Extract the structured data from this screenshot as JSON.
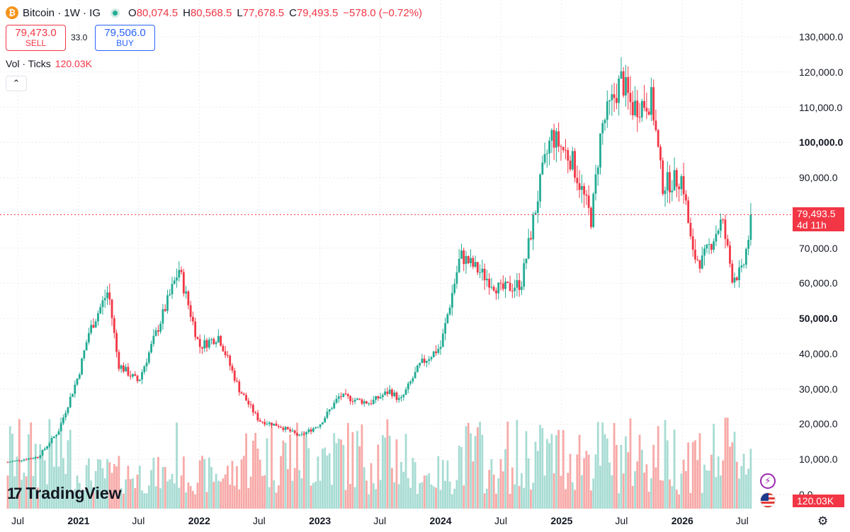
{
  "header": {
    "coin_icon": "bitcoin-icon",
    "coin_glyph": "₿",
    "symbol": "Bitcoin · 1W · IG",
    "open_key": "O",
    "open": "80,074.5",
    "high_key": "H",
    "high": "80,568.5",
    "low_key": "L",
    "low": "77,678.5",
    "close_key": "C",
    "close": "79,493.5",
    "change": "−578.0 (−0.72%)"
  },
  "trade": {
    "sell_price": "79,473.0",
    "sell_label": "SELL",
    "spread": "33.0",
    "buy_price": "79,506.0",
    "buy_label": "BUY"
  },
  "volume": {
    "label": "Vol · Ticks",
    "value": "120.03K"
  },
  "collapse_glyph": "⌃",
  "price_tag": {
    "price": "79,493.5",
    "countdown": "4d 11h"
  },
  "volume_tag": "120.03K",
  "logo": {
    "mark": "17",
    "text": "TradingView"
  },
  "icons": {
    "bolt": "⚡",
    "gear": "⚙"
  },
  "colors": {
    "up": "#22ab94",
    "down": "#f23645",
    "up_volume": "#a7dcd3",
    "down_volume": "#f7a9a7",
    "accent": "#2962ff"
  },
  "chart_data": {
    "type": "candlestick",
    "interval": "1W",
    "ylim": [
      0,
      135000
    ],
    "y_ticks": [
      "130,000.0",
      "120,000.0",
      "110,000.0",
      "100,000.0",
      "90,000.0",
      "80,000.0",
      "70,000.0",
      "60,000.0",
      "50,000.0",
      "40,000.0",
      "30,000.0",
      "20,000.0",
      "10,000.0",
      "0.0"
    ],
    "y_ticks_bold": [
      "100,000.0",
      "50,000.0"
    ],
    "y_tick_values": [
      130000,
      120000,
      110000,
      100000,
      90000,
      80000,
      70000,
      60000,
      50000,
      40000,
      30000,
      20000,
      10000,
      0
    ],
    "x_ticks": [
      "Jul",
      "2021",
      "Jul",
      "2022",
      "Jul",
      "2023",
      "Jul",
      "2024",
      "Jul",
      "2025",
      "Jul",
      "2026",
      "Jul"
    ],
    "x_ticks_bold": [
      "2021",
      "2022",
      "2023",
      "2024",
      "2025",
      "2026"
    ],
    "x_tick_dates": [
      "2020-07",
      "2021-01",
      "2021-07",
      "2022-01",
      "2022-07",
      "2023-01",
      "2023-07",
      "2024-01",
      "2024-07",
      "2025-01",
      "2025-07",
      "2026-01",
      "2026-07"
    ],
    "current_price": 79493.5,
    "grid": true,
    "close_path": [
      [
        "2020-06",
        9200
      ],
      [
        "2020-09",
        10700
      ],
      [
        "2020-11",
        18000
      ],
      [
        "2021-01",
        34000
      ],
      [
        "2021-02",
        46000
      ],
      [
        "2021-04",
        58000
      ],
      [
        "2021-05",
        37000
      ],
      [
        "2021-07",
        32000
      ],
      [
        "2021-09",
        48000
      ],
      [
        "2021-11",
        64000
      ],
      [
        "2022-01",
        42000
      ],
      [
        "2022-03",
        45000
      ],
      [
        "2022-05",
        30000
      ],
      [
        "2022-07",
        21000
      ],
      [
        "2022-09",
        19500
      ],
      [
        "2022-11",
        16500
      ],
      [
        "2023-01",
        20000
      ],
      [
        "2023-03",
        28000
      ],
      [
        "2023-06",
        26000
      ],
      [
        "2023-08",
        29500
      ],
      [
        "2023-09",
        26500
      ],
      [
        "2023-11",
        37000
      ],
      [
        "2024-01",
        42000
      ],
      [
        "2024-03",
        68000
      ],
      [
        "2024-05",
        63000
      ],
      [
        "2024-07",
        58000
      ],
      [
        "2024-09",
        60000
      ],
      [
        "2024-11",
        90000
      ],
      [
        "2024-12",
        102000
      ],
      [
        "2025-02",
        95000
      ],
      [
        "2025-04",
        78000
      ],
      [
        "2025-05",
        104000
      ],
      [
        "2025-07",
        118000
      ],
      [
        "2025-08",
        110000
      ],
      [
        "2025-10",
        112000
      ],
      [
        "2025-11",
        88000
      ],
      [
        "2026-01",
        90000
      ],
      [
        "2026-02",
        68000
      ],
      [
        "2026-03",
        66000
      ],
      [
        "2026-05",
        78000
      ],
      [
        "2026-06",
        62000
      ],
      [
        "2026-07",
        63000
      ],
      [
        "2026-08",
        79493.5
      ]
    ]
  }
}
